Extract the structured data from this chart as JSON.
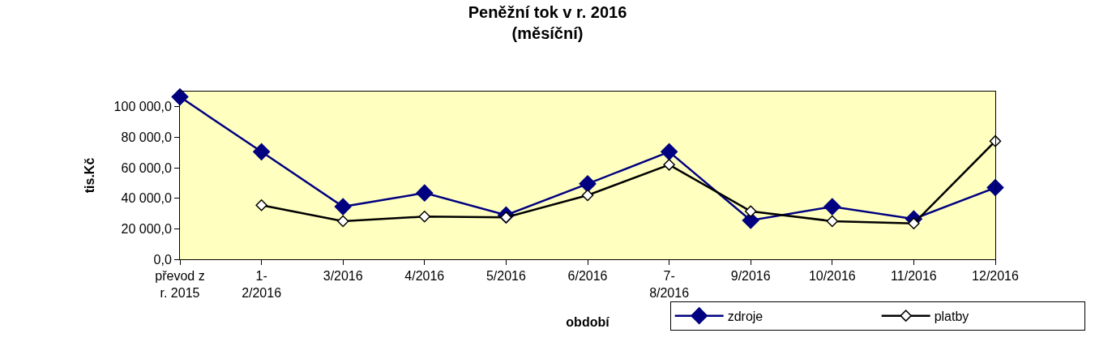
{
  "chart_data": {
    "type": "line",
    "title": "Peněžní tok v r. 2016\n(měsíční)",
    "xlabel": "období",
    "ylabel": "tis.Kč",
    "categories": [
      "převod z r. 2015",
      "1-2/2016",
      "3/2016",
      "4/2016",
      "5/2016",
      "6/2016",
      "7-8/2016",
      "9/2016",
      "10/2016",
      "11/2016",
      "12/2016"
    ],
    "series": [
      {
        "name": "zdroje",
        "color": "#000080",
        "values": [
          106500,
          70500,
          34500,
          43500,
          29000,
          49500,
          70500,
          25500,
          34500,
          26500,
          47000
        ]
      },
      {
        "name": "platby",
        "color": "#000000",
        "values": [
          null,
          35500,
          25000,
          28000,
          27500,
          42000,
          62000,
          31500,
          25000,
          23500,
          77500
        ]
      }
    ],
    "ylim": [
      0,
      110000
    ],
    "yticks": [
      {
        "value": 0,
        "label": "0,0"
      },
      {
        "value": 20000,
        "label": "20 000,0"
      },
      {
        "value": 40000,
        "label": "40 000,0"
      },
      {
        "value": 60000,
        "label": "60 000,0"
      },
      {
        "value": 80000,
        "label": "80 000,0"
      },
      {
        "value": 100000,
        "label": "100 000,0"
      }
    ],
    "grid": false,
    "legend": "bottom right",
    "marker": "diamond",
    "line_style": "solid"
  }
}
